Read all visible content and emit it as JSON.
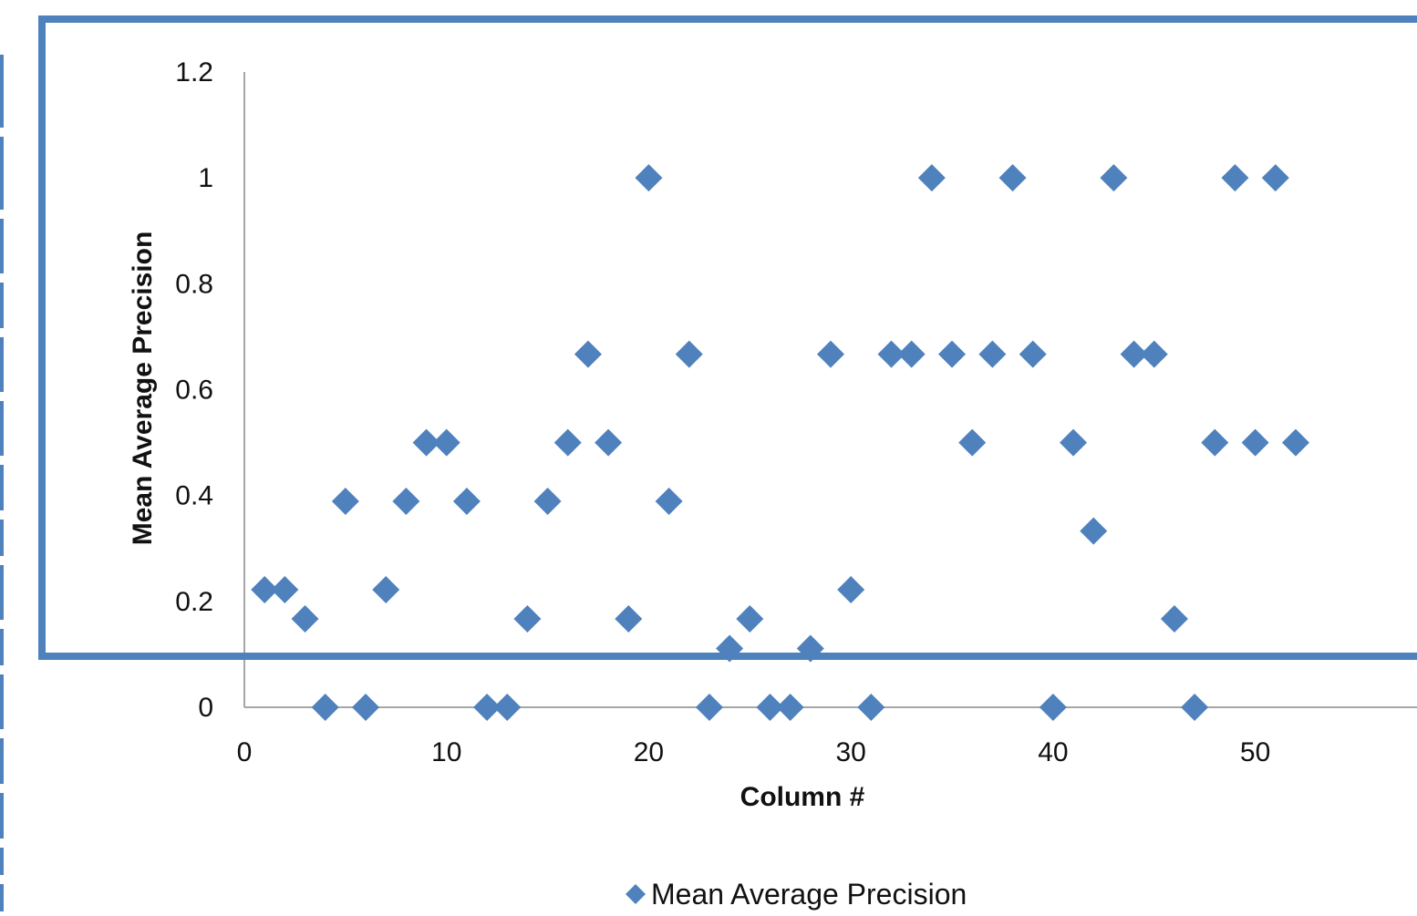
{
  "chart_data": {
    "type": "scatter",
    "title": "",
    "xlabel": "Column #",
    "ylabel": "Mean Average Precision",
    "xlim": [
      0,
      58
    ],
    "ylim": [
      0,
      1.2
    ],
    "x_ticks": [
      "0",
      "10",
      "20",
      "30",
      "40",
      "50"
    ],
    "x_tick_values": [
      0,
      10,
      20,
      30,
      40,
      50
    ],
    "y_ticks": [
      "0",
      "0.2",
      "0.4",
      "0.6",
      "0.8",
      "1",
      "1.2"
    ],
    "y_tick_values": [
      0,
      0.2,
      0.4,
      0.6,
      0.8,
      1.0,
      1.2
    ],
    "grid": false,
    "legend_position": "bottom",
    "series": [
      {
        "name": "Mean Average Precision",
        "color": "#4f81bd",
        "marker": "diamond",
        "points": [
          [
            1,
            0.222
          ],
          [
            2,
            0.222
          ],
          [
            3,
            0.167
          ],
          [
            4,
            0.0
          ],
          [
            5,
            0.389
          ],
          [
            6,
            0.0
          ],
          [
            7,
            0.222
          ],
          [
            8,
            0.389
          ],
          [
            9,
            0.5
          ],
          [
            10,
            0.5
          ],
          [
            11,
            0.389
          ],
          [
            12,
            0.0
          ],
          [
            13,
            0.0
          ],
          [
            14,
            0.167
          ],
          [
            15,
            0.389
          ],
          [
            16,
            0.5
          ],
          [
            17,
            0.667
          ],
          [
            18,
            0.5
          ],
          [
            19,
            0.167
          ],
          [
            20,
            1.0
          ],
          [
            21,
            0.389
          ],
          [
            22,
            0.667
          ],
          [
            23,
            0.0
          ],
          [
            24,
            0.111
          ],
          [
            25,
            0.167
          ],
          [
            26,
            0.0
          ],
          [
            27,
            0.0
          ],
          [
            28,
            0.111
          ],
          [
            29,
            0.667
          ],
          [
            30,
            0.222
          ],
          [
            31,
            0.0
          ],
          [
            32,
            0.667
          ],
          [
            33,
            0.667
          ],
          [
            34,
            1.0
          ],
          [
            35,
            0.667
          ],
          [
            36,
            0.5
          ],
          [
            37,
            0.667
          ],
          [
            38,
            1.0
          ],
          [
            39,
            0.667
          ],
          [
            40,
            0.0
          ],
          [
            41,
            0.5
          ],
          [
            42,
            0.333
          ],
          [
            43,
            1.0
          ],
          [
            44,
            0.667
          ],
          [
            45,
            0.667
          ],
          [
            46,
            0.167
          ],
          [
            47,
            0.0
          ],
          [
            48,
            0.5
          ],
          [
            49,
            1.0
          ],
          [
            50,
            0.5
          ],
          [
            51,
            1.0
          ],
          [
            52,
            0.5
          ]
        ]
      }
    ]
  },
  "colors": {
    "marker": "#4f81bd",
    "highlight_frame": "#4f81bd",
    "axis_line": "#a6a6a6"
  }
}
